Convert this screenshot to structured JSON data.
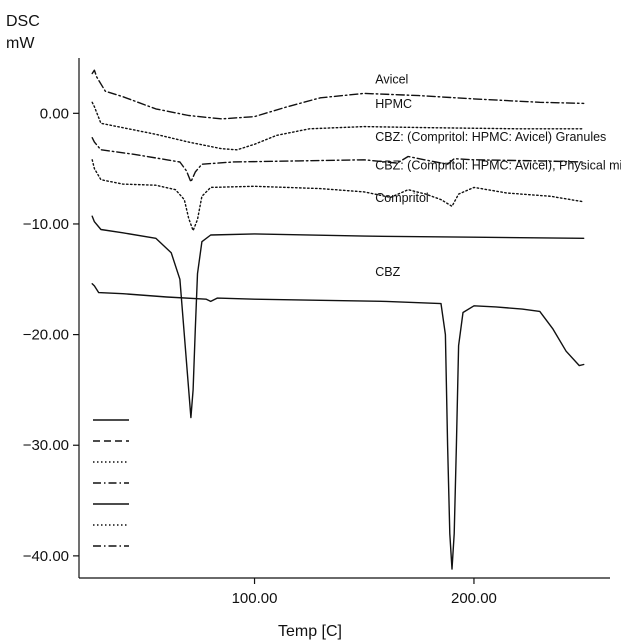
{
  "chart_data": {
    "type": "line",
    "ylabel_line1": "DSC",
    "ylabel_line2": "mW",
    "xlabel": "Temp [C]",
    "xlim": [
      20,
      262
    ],
    "ylim": [
      -42,
      5
    ],
    "x_ticks": [
      100,
      200
    ],
    "x_tick_labels": [
      "100.00",
      "200.00"
    ],
    "y_ticks": [
      0,
      -10,
      -20,
      -30,
      -40
    ],
    "y_tick_labels": [
      "0.00",
      "−10.00",
      "−20.00",
      "−30.00",
      "−40.00"
    ],
    "series": [
      {
        "name": "Avicel",
        "dash": "dashdot",
        "label_at": [
          155,
          2.7
        ],
        "points": [
          [
            26,
            3.6
          ],
          [
            27,
            3.9
          ],
          [
            28,
            3.3
          ],
          [
            32,
            2.0
          ],
          [
            40,
            1.5
          ],
          [
            55,
            0.4
          ],
          [
            70,
            -0.2
          ],
          [
            85,
            -0.5
          ],
          [
            100,
            -0.3
          ],
          [
            115,
            0.6
          ],
          [
            130,
            1.4
          ],
          [
            150,
            1.8
          ],
          [
            175,
            1.6
          ],
          [
            200,
            1.3
          ],
          [
            230,
            1.0
          ],
          [
            250,
            0.9
          ]
        ]
      },
      {
        "name": "HPMC",
        "dash": "dot",
        "label_at": [
          155,
          0.5
        ],
        "points": [
          [
            26,
            1.0
          ],
          [
            27,
            0.6
          ],
          [
            30,
            -0.9
          ],
          [
            40,
            -1.3
          ],
          [
            55,
            -1.9
          ],
          [
            70,
            -2.6
          ],
          [
            85,
            -3.2
          ],
          [
            92,
            -3.3
          ],
          [
            100,
            -2.8
          ],
          [
            110,
            -2.0
          ],
          [
            125,
            -1.4
          ],
          [
            150,
            -1.2
          ],
          [
            180,
            -1.3
          ],
          [
            220,
            -1.4
          ],
          [
            250,
            -1.4
          ]
        ]
      },
      {
        "name": "CBZ: (Compritol: HPMC: Avicel) Granules",
        "dash": "dashdot",
        "label_at": [
          155,
          -2.5
        ],
        "points": [
          [
            26,
            -2.2
          ],
          [
            27,
            -2.6
          ],
          [
            30,
            -3.3
          ],
          [
            45,
            -3.7
          ],
          [
            60,
            -4.2
          ],
          [
            66,
            -4.4
          ],
          [
            69,
            -5.2
          ],
          [
            71,
            -6.2
          ],
          [
            73,
            -5.3
          ],
          [
            76,
            -4.6
          ],
          [
            90,
            -4.4
          ],
          [
            120,
            -4.3
          ],
          [
            150,
            -4.2
          ],
          [
            165,
            -4.5
          ],
          [
            170,
            -3.9
          ],
          [
            180,
            -4.3
          ],
          [
            188,
            -4.6
          ],
          [
            191,
            -4.1
          ],
          [
            200,
            -4.2
          ],
          [
            230,
            -4.3
          ],
          [
            250,
            -4.4
          ]
        ]
      },
      {
        "name": "CBZ: (Compritol: HPMC: Avicel), Physical mixture",
        "dash": "dot",
        "label_at": [
          155,
          -5.1
        ],
        "points": [
          [
            26,
            -4.2
          ],
          [
            27,
            -5.0
          ],
          [
            30,
            -6.0
          ],
          [
            40,
            -6.4
          ],
          [
            55,
            -6.5
          ],
          [
            64,
            -6.9
          ],
          [
            68,
            -7.8
          ],
          [
            70,
            -9.5
          ],
          [
            72,
            -10.6
          ],
          [
            74,
            -9.6
          ],
          [
            76,
            -7.5
          ],
          [
            80,
            -6.7
          ],
          [
            100,
            -6.6
          ],
          [
            130,
            -6.8
          ],
          [
            150,
            -7.1
          ],
          [
            162,
            -7.6
          ],
          [
            170,
            -6.9
          ],
          [
            178,
            -7.3
          ],
          [
            185,
            -7.8
          ],
          [
            190,
            -8.4
          ],
          [
            193,
            -7.3
          ],
          [
            200,
            -6.7
          ],
          [
            215,
            -7.2
          ],
          [
            235,
            -7.5
          ],
          [
            250,
            -8.0
          ]
        ]
      },
      {
        "name": "Compritol",
        "dash": "solid",
        "label_at": [
          155,
          -8.0
        ],
        "points": [
          [
            26,
            -9.3
          ],
          [
            27,
            -9.8
          ],
          [
            30,
            -10.5
          ],
          [
            40,
            -10.8
          ],
          [
            55,
            -11.3
          ],
          [
            62,
            -12.6
          ],
          [
            66,
            -15.0
          ],
          [
            68,
            -20.0
          ],
          [
            70,
            -25.0
          ],
          [
            71,
            -27.5
          ],
          [
            72,
            -25.0
          ],
          [
            73,
            -19.5
          ],
          [
            74,
            -14.5
          ],
          [
            76,
            -11.6
          ],
          [
            80,
            -11.0
          ],
          [
            100,
            -10.9
          ],
          [
            150,
            -11.1
          ],
          [
            200,
            -11.2
          ],
          [
            250,
            -11.3
          ]
        ]
      },
      {
        "name": "CBZ",
        "dash": "solid",
        "label_at": [
          155,
          -14.7
        ],
        "points": [
          [
            26,
            -15.4
          ],
          [
            27,
            -15.6
          ],
          [
            29,
            -16.2
          ],
          [
            40,
            -16.3
          ],
          [
            60,
            -16.6
          ],
          [
            78,
            -16.8
          ],
          [
            80,
            -17.0
          ],
          [
            83,
            -16.7
          ],
          [
            100,
            -16.8
          ],
          [
            130,
            -16.9
          ],
          [
            160,
            -17.0
          ],
          [
            185,
            -17.2
          ],
          [
            187,
            -20.0
          ],
          [
            188,
            -30.0
          ],
          [
            189,
            -38.0
          ],
          [
            190,
            -41.2
          ],
          [
            191,
            -38.0
          ],
          [
            192,
            -30.0
          ],
          [
            193,
            -21.0
          ],
          [
            195,
            -18.0
          ],
          [
            200,
            -17.4
          ],
          [
            210,
            -17.5
          ],
          [
            222,
            -17.7
          ],
          [
            230,
            -17.9
          ],
          [
            236,
            -19.5
          ],
          [
            242,
            -21.5
          ],
          [
            248,
            -22.8
          ],
          [
            250,
            -22.7
          ]
        ]
      }
    ],
    "legend_dash_styles": [
      "solid",
      "dash",
      "dot",
      "dashdot",
      "solid",
      "dot",
      "dashdot"
    ]
  }
}
